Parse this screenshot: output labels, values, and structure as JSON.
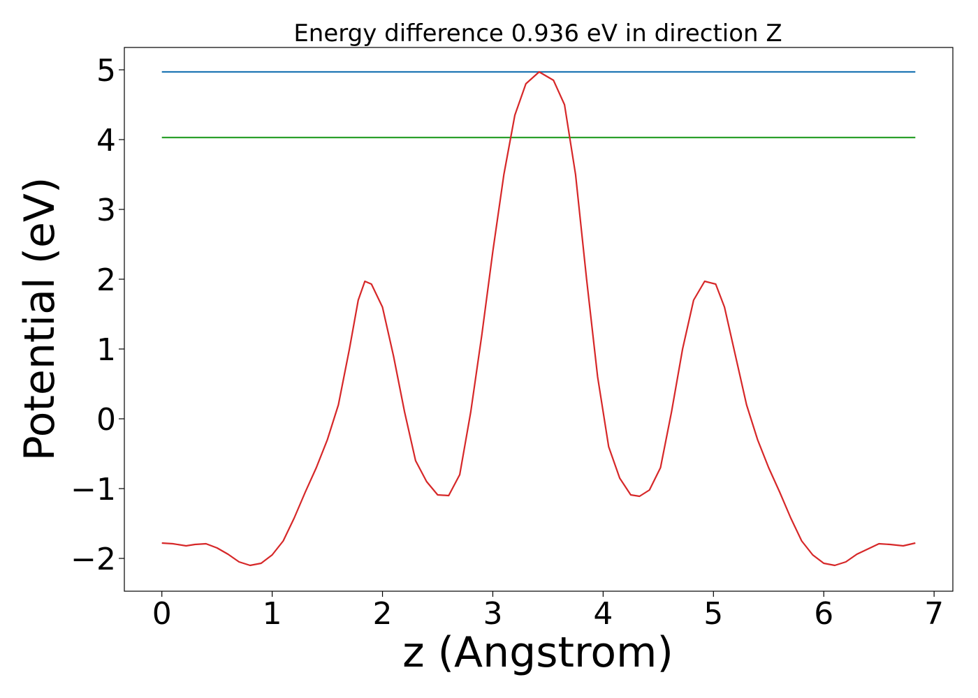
{
  "chart_data": {
    "type": "line",
    "title": "Energy difference 0.936 eV in direction Z",
    "xlabel": "z (Angstrom)",
    "ylabel": "Potential (eV)",
    "xlim": [
      -0.34,
      7.17
    ],
    "ylim": [
      -2.47,
      5.32
    ],
    "xticks": [
      0,
      1,
      2,
      3,
      4,
      5,
      6,
      7
    ],
    "yticks": [
      -2,
      -1,
      0,
      1,
      2,
      3,
      4,
      5
    ],
    "xtick_labels": [
      "0",
      "1",
      "2",
      "3",
      "4",
      "5",
      "6",
      "7"
    ],
    "ytick_labels": [
      "−2",
      "−1",
      "0",
      "1",
      "2",
      "3",
      "4",
      "5"
    ],
    "grid": false,
    "legend": "none",
    "series": [
      {
        "color": "#1f77b4",
        "x": [
          0,
          6.83
        ],
        "y": [
          4.97,
          4.97
        ]
      },
      {
        "color": "#2ca02c",
        "x": [
          0,
          6.83
        ],
        "y": [
          4.03,
          4.03
        ]
      },
      {
        "color": "#d62728",
        "x": [
          0,
          0.1,
          0.22,
          0.3,
          0.4,
          0.5,
          0.6,
          0.7,
          0.8,
          0.9,
          1.0,
          1.1,
          1.2,
          1.3,
          1.4,
          1.5,
          1.6,
          1.7,
          1.78,
          1.84,
          1.9,
          2.0,
          2.1,
          2.2,
          2.3,
          2.4,
          2.5,
          2.6,
          2.7,
          2.8,
          2.9,
          3.0,
          3.1,
          3.2,
          3.3,
          3.42,
          3.55,
          3.65,
          3.75,
          3.85,
          3.95,
          4.05,
          4.15,
          4.25,
          4.33,
          4.42,
          4.52,
          4.62,
          4.72,
          4.82,
          4.92,
          5.02,
          5.1,
          5.2,
          5.3,
          5.4,
          5.5,
          5.6,
          5.7,
          5.8,
          5.9,
          6.0,
          6.1,
          6.2,
          6.3,
          6.42,
          6.5,
          6.6,
          6.72,
          6.83
        ],
        "y": [
          -1.78,
          -1.79,
          -1.82,
          -1.8,
          -1.79,
          -1.85,
          -1.94,
          -2.05,
          -2.1,
          -2.07,
          -1.95,
          -1.75,
          -1.42,
          -1.05,
          -0.7,
          -0.3,
          0.2,
          1.0,
          1.7,
          1.97,
          1.93,
          1.6,
          0.9,
          0.1,
          -0.6,
          -0.9,
          -1.09,
          -1.1,
          -0.8,
          0.1,
          1.2,
          2.4,
          3.5,
          4.35,
          4.8,
          4.97,
          4.85,
          4.5,
          3.5,
          2.0,
          0.6,
          -0.4,
          -0.85,
          -1.09,
          -1.11,
          -1.02,
          -0.7,
          0.1,
          1.0,
          1.7,
          1.97,
          1.93,
          1.6,
          0.9,
          0.2,
          -0.3,
          -0.7,
          -1.05,
          -1.42,
          -1.75,
          -1.95,
          -2.07,
          -2.1,
          -2.05,
          -1.94,
          -1.85,
          -1.79,
          -1.8,
          -1.82,
          -1.78
        ]
      }
    ]
  }
}
